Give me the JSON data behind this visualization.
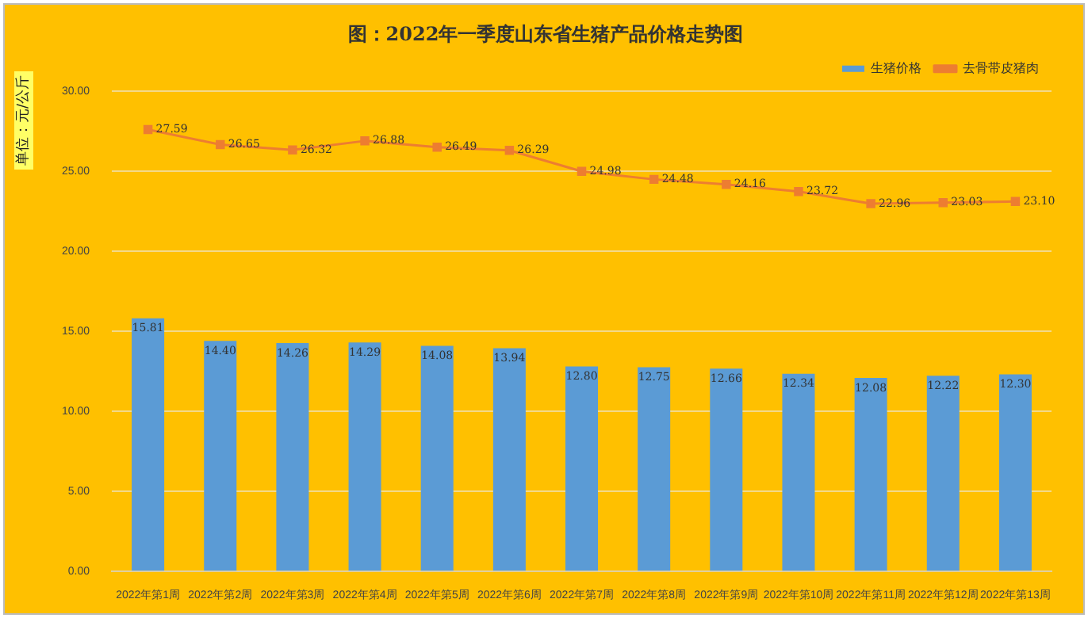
{
  "chart_data": {
    "type": "bar",
    "title": "图：2022年一季度山东省生猪产品价格走势图",
    "ylabel": "单位：元/公斤",
    "categories": [
      "2022年第1周",
      "2022年第2周",
      "2022年第3周",
      "2022年第4周",
      "2022年第5周",
      "2022年第6周",
      "2022年第7周",
      "2022年第8周",
      "2022年第9周",
      "2022年第10周",
      "2022年第11周",
      "2022年第12周",
      "2022年第13周"
    ],
    "series": [
      {
        "name": "生猪价格",
        "color": "#5b9bd5",
        "values": [
          15.81,
          14.4,
          14.26,
          14.29,
          14.08,
          13.94,
          12.8,
          12.75,
          12.66,
          12.34,
          12.08,
          12.22,
          12.3
        ],
        "value_labels": [
          "15.81",
          "14.40",
          "14.26",
          "14.29",
          "14.08",
          "13.94",
          "12.80",
          "12.75",
          "12.66",
          "12.34",
          "12.08",
          "12.22",
          "12.30"
        ]
      },
      {
        "name": "去骨带皮猪肉",
        "type": "line",
        "color": "#ed7d31",
        "values": [
          27.59,
          26.65,
          26.32,
          26.88,
          26.49,
          26.29,
          24.98,
          24.48,
          24.16,
          23.72,
          22.96,
          23.03,
          23.1
        ],
        "value_labels": [
          "27.59",
          "26.65",
          "26.32",
          "26.88",
          "26.49",
          "26.29",
          "24.98",
          "24.48",
          "24.16",
          "23.72",
          "22.96",
          "23.03",
          "23.10"
        ]
      }
    ],
    "ylim": [
      0,
      30
    ],
    "yticks": [
      {
        "value": 0,
        "label": "0.00"
      },
      {
        "value": 5,
        "label": "5.00"
      },
      {
        "value": 10,
        "label": "10.00"
      },
      {
        "value": 15,
        "label": "15.00"
      },
      {
        "value": 20,
        "label": "20.00"
      },
      {
        "value": 25,
        "label": "25.00"
      },
      {
        "value": 30,
        "label": "30.00"
      }
    ],
    "grid": "y",
    "legend": "top right",
    "marker": "square",
    "line_style": "solid"
  }
}
